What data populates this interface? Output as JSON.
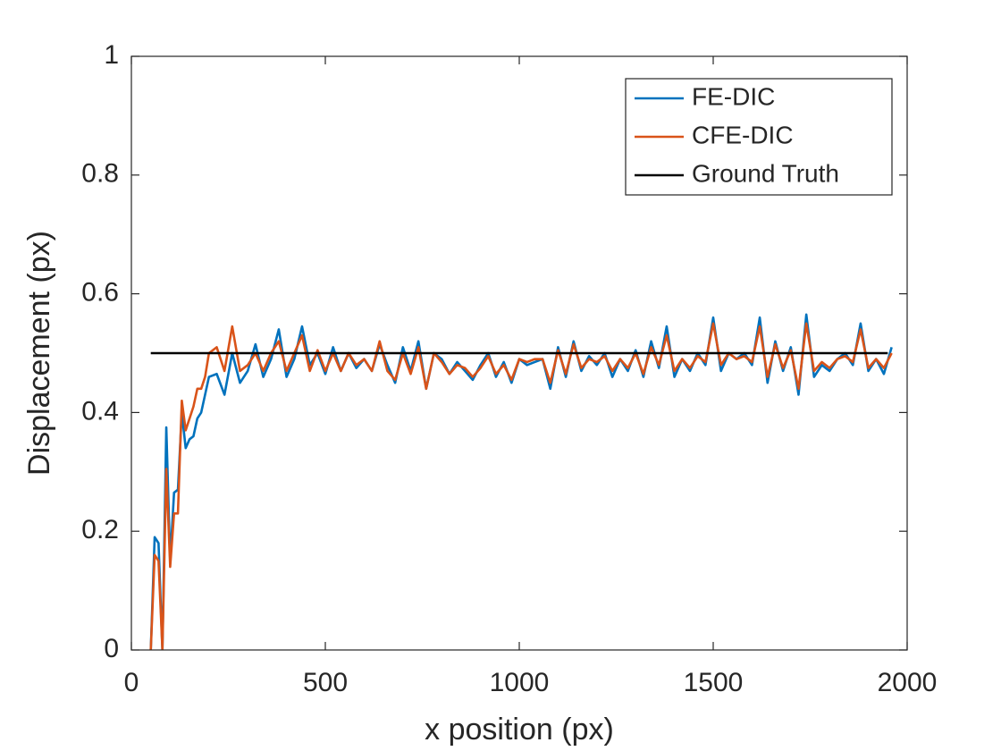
{
  "chart_data": {
    "type": "line",
    "xlabel": "x position (px)",
    "ylabel": "Displacement (px)",
    "xlim": [
      0,
      2000
    ],
    "xticks": [
      0,
      500,
      1000,
      1500,
      2000
    ],
    "ylim": [
      0,
      1
    ],
    "yticks": [
      0,
      0.2,
      0.4,
      0.6,
      0.8,
      1
    ],
    "legend": "northeast",
    "grid": false,
    "series": [
      {
        "name": "FE-DIC",
        "color": "#0072BD",
        "x": [
          50,
          60,
          70,
          80,
          90,
          100,
          110,
          120,
          130,
          140,
          150,
          160,
          170,
          180,
          190,
          200,
          220,
          240,
          260,
          280,
          300,
          320,
          340,
          360,
          380,
          400,
          420,
          440,
          460,
          480,
          500,
          520,
          540,
          560,
          580,
          600,
          620,
          640,
          660,
          680,
          700,
          720,
          740,
          760,
          780,
          800,
          820,
          840,
          860,
          880,
          900,
          920,
          940,
          960,
          980,
          1000,
          1020,
          1040,
          1060,
          1080,
          1100,
          1120,
          1140,
          1160,
          1180,
          1200,
          1220,
          1240,
          1260,
          1280,
          1300,
          1320,
          1340,
          1360,
          1380,
          1400,
          1420,
          1440,
          1460,
          1480,
          1500,
          1520,
          1540,
          1560,
          1580,
          1600,
          1620,
          1640,
          1660,
          1680,
          1700,
          1720,
          1740,
          1760,
          1780,
          1800,
          1820,
          1840,
          1860,
          1880,
          1900,
          1920,
          1940,
          1960
        ],
        "values": [
          0,
          0.19,
          0.18,
          0,
          0.375,
          0.15,
          0.265,
          0.27,
          0.4,
          0.34,
          0.355,
          0.36,
          0.39,
          0.4,
          0.43,
          0.46,
          0.465,
          0.43,
          0.5,
          0.45,
          0.47,
          0.515,
          0.46,
          0.49,
          0.54,
          0.46,
          0.49,
          0.545,
          0.48,
          0.5,
          0.465,
          0.51,
          0.47,
          0.5,
          0.475,
          0.49,
          0.47,
          0.515,
          0.48,
          0.45,
          0.51,
          0.47,
          0.52,
          0.44,
          0.5,
          0.49,
          0.465,
          0.485,
          0.47,
          0.455,
          0.48,
          0.5,
          0.46,
          0.485,
          0.45,
          0.49,
          0.48,
          0.485,
          0.49,
          0.44,
          0.51,
          0.46,
          0.52,
          0.47,
          0.495,
          0.48,
          0.5,
          0.46,
          0.49,
          0.47,
          0.505,
          0.46,
          0.52,
          0.475,
          0.545,
          0.46,
          0.49,
          0.47,
          0.5,
          0.48,
          0.56,
          0.47,
          0.5,
          0.49,
          0.5,
          0.48,
          0.56,
          0.45,
          0.52,
          0.47,
          0.51,
          0.43,
          0.565,
          0.46,
          0.48,
          0.47,
          0.49,
          0.5,
          0.48,
          0.55,
          0.47,
          0.49,
          0.465,
          0.51
        ]
      },
      {
        "name": "CFE-DIC",
        "color": "#D95319",
        "x": [
          50,
          60,
          70,
          80,
          90,
          100,
          110,
          120,
          130,
          140,
          150,
          160,
          170,
          180,
          190,
          200,
          220,
          240,
          260,
          280,
          300,
          320,
          340,
          360,
          380,
          400,
          420,
          440,
          460,
          480,
          500,
          520,
          540,
          560,
          580,
          600,
          620,
          640,
          660,
          680,
          700,
          720,
          740,
          760,
          780,
          800,
          820,
          840,
          860,
          880,
          900,
          920,
          940,
          960,
          980,
          1000,
          1020,
          1040,
          1060,
          1080,
          1100,
          1120,
          1140,
          1160,
          1180,
          1200,
          1220,
          1240,
          1260,
          1280,
          1300,
          1320,
          1340,
          1360,
          1380,
          1400,
          1420,
          1440,
          1460,
          1480,
          1500,
          1520,
          1540,
          1560,
          1580,
          1600,
          1620,
          1640,
          1660,
          1680,
          1700,
          1720,
          1740,
          1760,
          1780,
          1800,
          1820,
          1840,
          1860,
          1880,
          1900,
          1920,
          1940,
          1960
        ],
        "values": [
          0,
          0.16,
          0.15,
          0,
          0.305,
          0.14,
          0.23,
          0.23,
          0.42,
          0.37,
          0.39,
          0.41,
          0.44,
          0.44,
          0.46,
          0.5,
          0.51,
          0.47,
          0.545,
          0.47,
          0.48,
          0.5,
          0.47,
          0.5,
          0.52,
          0.47,
          0.5,
          0.53,
          0.47,
          0.505,
          0.47,
          0.5,
          0.47,
          0.5,
          0.48,
          0.49,
          0.47,
          0.52,
          0.47,
          0.455,
          0.5,
          0.465,
          0.51,
          0.44,
          0.5,
          0.485,
          0.465,
          0.48,
          0.475,
          0.46,
          0.475,
          0.495,
          0.465,
          0.48,
          0.455,
          0.49,
          0.485,
          0.49,
          0.49,
          0.45,
          0.505,
          0.465,
          0.515,
          0.475,
          0.49,
          0.485,
          0.495,
          0.47,
          0.49,
          0.475,
          0.5,
          0.465,
          0.51,
          0.48,
          0.53,
          0.47,
          0.49,
          0.475,
          0.495,
          0.485,
          0.55,
          0.48,
          0.5,
          0.49,
          0.495,
          0.485,
          0.545,
          0.46,
          0.515,
          0.475,
          0.505,
          0.44,
          0.55,
          0.47,
          0.485,
          0.475,
          0.49,
          0.495,
          0.485,
          0.54,
          0.475,
          0.49,
          0.475,
          0.5
        ]
      },
      {
        "name": "Ground Truth",
        "color": "#000000",
        "x": [
          50,
          1950
        ],
        "values": [
          0.5,
          0.5
        ]
      }
    ]
  }
}
